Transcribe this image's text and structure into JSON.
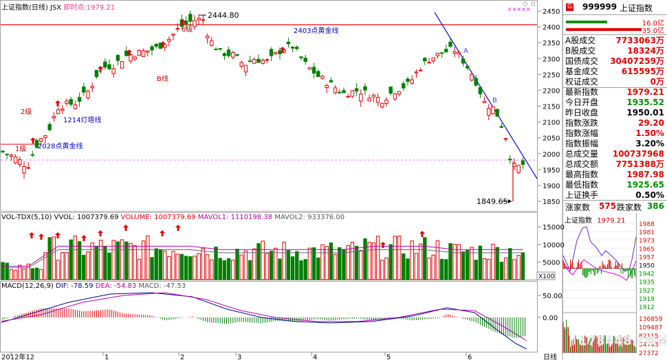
{
  "main_header": {
    "title": "上证指数(日线)",
    "code": "JSX",
    "live_label": "即时点:",
    "live_value": "1979.21"
  },
  "price_axis_ticks": [
    "2450",
    "2400",
    "2350",
    "2300",
    "2250",
    "2200",
    "2150",
    "2100",
    "2050",
    "2000",
    "1950",
    "1900",
    "1850"
  ],
  "annotations": {
    "high_point": "2444.80",
    "low_point": "1849.65",
    "gold_2403": "2403点黄金线",
    "gold_2028": "2028点黄金线",
    "gold_1214": "1214灯塔线",
    "b_line": "B线",
    "level_1": "1级",
    "level_2": "2级",
    "level_6": "6级",
    "wave_a": "A",
    "wave_b": "B",
    "stars": "×××××"
  },
  "volume_header": {
    "name": "VOL-TDX(5,10)",
    "vvol": "VVOL: 1007379.69",
    "volume": "VOLUME: 1007379.69",
    "mavol1": "MAVOL1: 1110198.38",
    "mavol2": "MAVOL2: 933376.00"
  },
  "volume_axis_ticks": [
    "15000",
    "10000",
    "5000"
  ],
  "volume_unit": "X100",
  "macd_header": {
    "name": "MACD(12,26,9)",
    "dif": "DIF: -78.59",
    "dea": "DEA: -54.83",
    "macd": "MACD: -47.53"
  },
  "macd_axis_ticks": [
    "50.00",
    "0.00"
  ],
  "date_axis": {
    "labels": [
      "2012年12",
      "1",
      "2",
      "3",
      "4",
      "5",
      "6"
    ],
    "period": "日线"
  },
  "quote_panel": {
    "badge": "G",
    "code": "999999",
    "name": "上证指数",
    "bar_up_value": "16.0亿",
    "bar_down_value": "35.0亿",
    "rows": [
      {
        "label": "A股成交",
        "value": "7733063万",
        "color": "red"
      },
      {
        "label": "B股成交",
        "value": "18324万",
        "color": "red"
      },
      {
        "label": "国债成交",
        "value": "30407259万",
        "color": "red"
      },
      {
        "label": "基金成交",
        "value": "615595万",
        "color": "red"
      },
      {
        "label": "权证成交",
        "value": "0万",
        "color": "red"
      },
      {
        "label": "最新指数",
        "value": "1979.21",
        "color": "red"
      },
      {
        "label": "今日开盘",
        "value": "1935.52",
        "color": "green"
      },
      {
        "label": "昨日收盘",
        "value": "1950.01",
        "color": "black"
      },
      {
        "label": "指数涨跌",
        "value": "29.20",
        "color": "red"
      },
      {
        "label": "指数涨幅",
        "value": "1.50%",
        "color": "red"
      },
      {
        "label": "指数振幅",
        "value": "3.20%",
        "color": "black"
      },
      {
        "label": "总成交量",
        "value": "100737968",
        "color": "red"
      },
      {
        "label": "总成交额",
        "value": "7751388万",
        "color": "red"
      },
      {
        "label": "最高指数",
        "value": "1987.98",
        "color": "red"
      },
      {
        "label": "最低指数",
        "value": "1925.65",
        "color": "green"
      },
      {
        "label": "上证换手",
        "value": "0.50%",
        "color": "black"
      }
    ],
    "rise_label": "涨家数",
    "rise_value": "575",
    "fall_label": "跌家数",
    "fall_value": "386"
  },
  "intraday": {
    "title": "上证指数",
    "value": "1979.21",
    "price_ticks": [
      "1988",
      "1981",
      "1973",
      "1965",
      "1957",
      "1950",
      "1942",
      "1935",
      "1927",
      "1919",
      "1912"
    ],
    "volume_ticks": [
      "136859",
      "109487",
      "82115",
      "54743",
      "27372"
    ],
    "watermark": "178448.COM"
  },
  "colors": {
    "up": "#e00000",
    "down": "#007f00",
    "gold_line": "#e00000",
    "trend_line": "#0000e0",
    "ma_purple": "#b000b0",
    "axis_gray": "#a0a0a0"
  }
}
